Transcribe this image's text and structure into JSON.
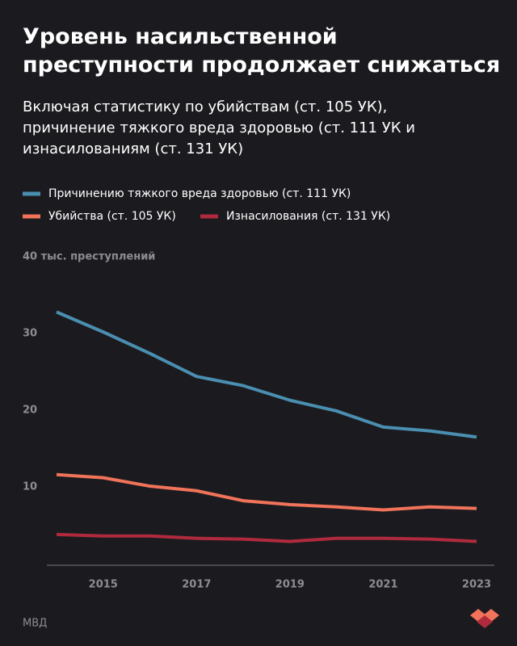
{
  "chart_data": {
    "type": "line",
    "title": "Уровень насильственной преступности продолжает снижаться",
    "subtitle": "Включая статистику по убийствам (ст. 105 УК), причинение тяжкого вреда здоровью (ст. 111 УК и изнасилованиям (ст. 131 УК)",
    "x": [
      2014,
      2015,
      2016,
      2017,
      2018,
      2019,
      2020,
      2021,
      2022,
      2023
    ],
    "xlim": [
      2014,
      2023
    ],
    "xticks": [
      2015,
      2017,
      2019,
      2021,
      2023
    ],
    "ylim": [
      0,
      40
    ],
    "yticks": [
      10,
      20,
      30,
      {
        "value": 40,
        "label": "40 тыс. преступлений"
      }
    ],
    "series": [
      {
        "name": "Причинению тяжкого вреда здоровью (ст. 111 УК)",
        "color": "#4a8eb0",
        "values": [
          32.8,
          30.2,
          27.4,
          24.4,
          23.2,
          21.3,
          19.9,
          17.8,
          17.3,
          16.5
        ]
      },
      {
        "name": "Убийства (ст. 105 УК)",
        "color": "#f0735a",
        "values": [
          11.6,
          11.2,
          10.1,
          9.5,
          8.2,
          7.7,
          7.4,
          7.0,
          7.4,
          7.2
        ]
      },
      {
        "name": "Изнасилования (ст. 131 УК)",
        "color": "#b02a3e",
        "values": [
          3.8,
          3.6,
          3.6,
          3.3,
          3.2,
          2.9,
          3.3,
          3.3,
          3.2,
          2.9
        ]
      }
    ],
    "source": "МВД"
  }
}
